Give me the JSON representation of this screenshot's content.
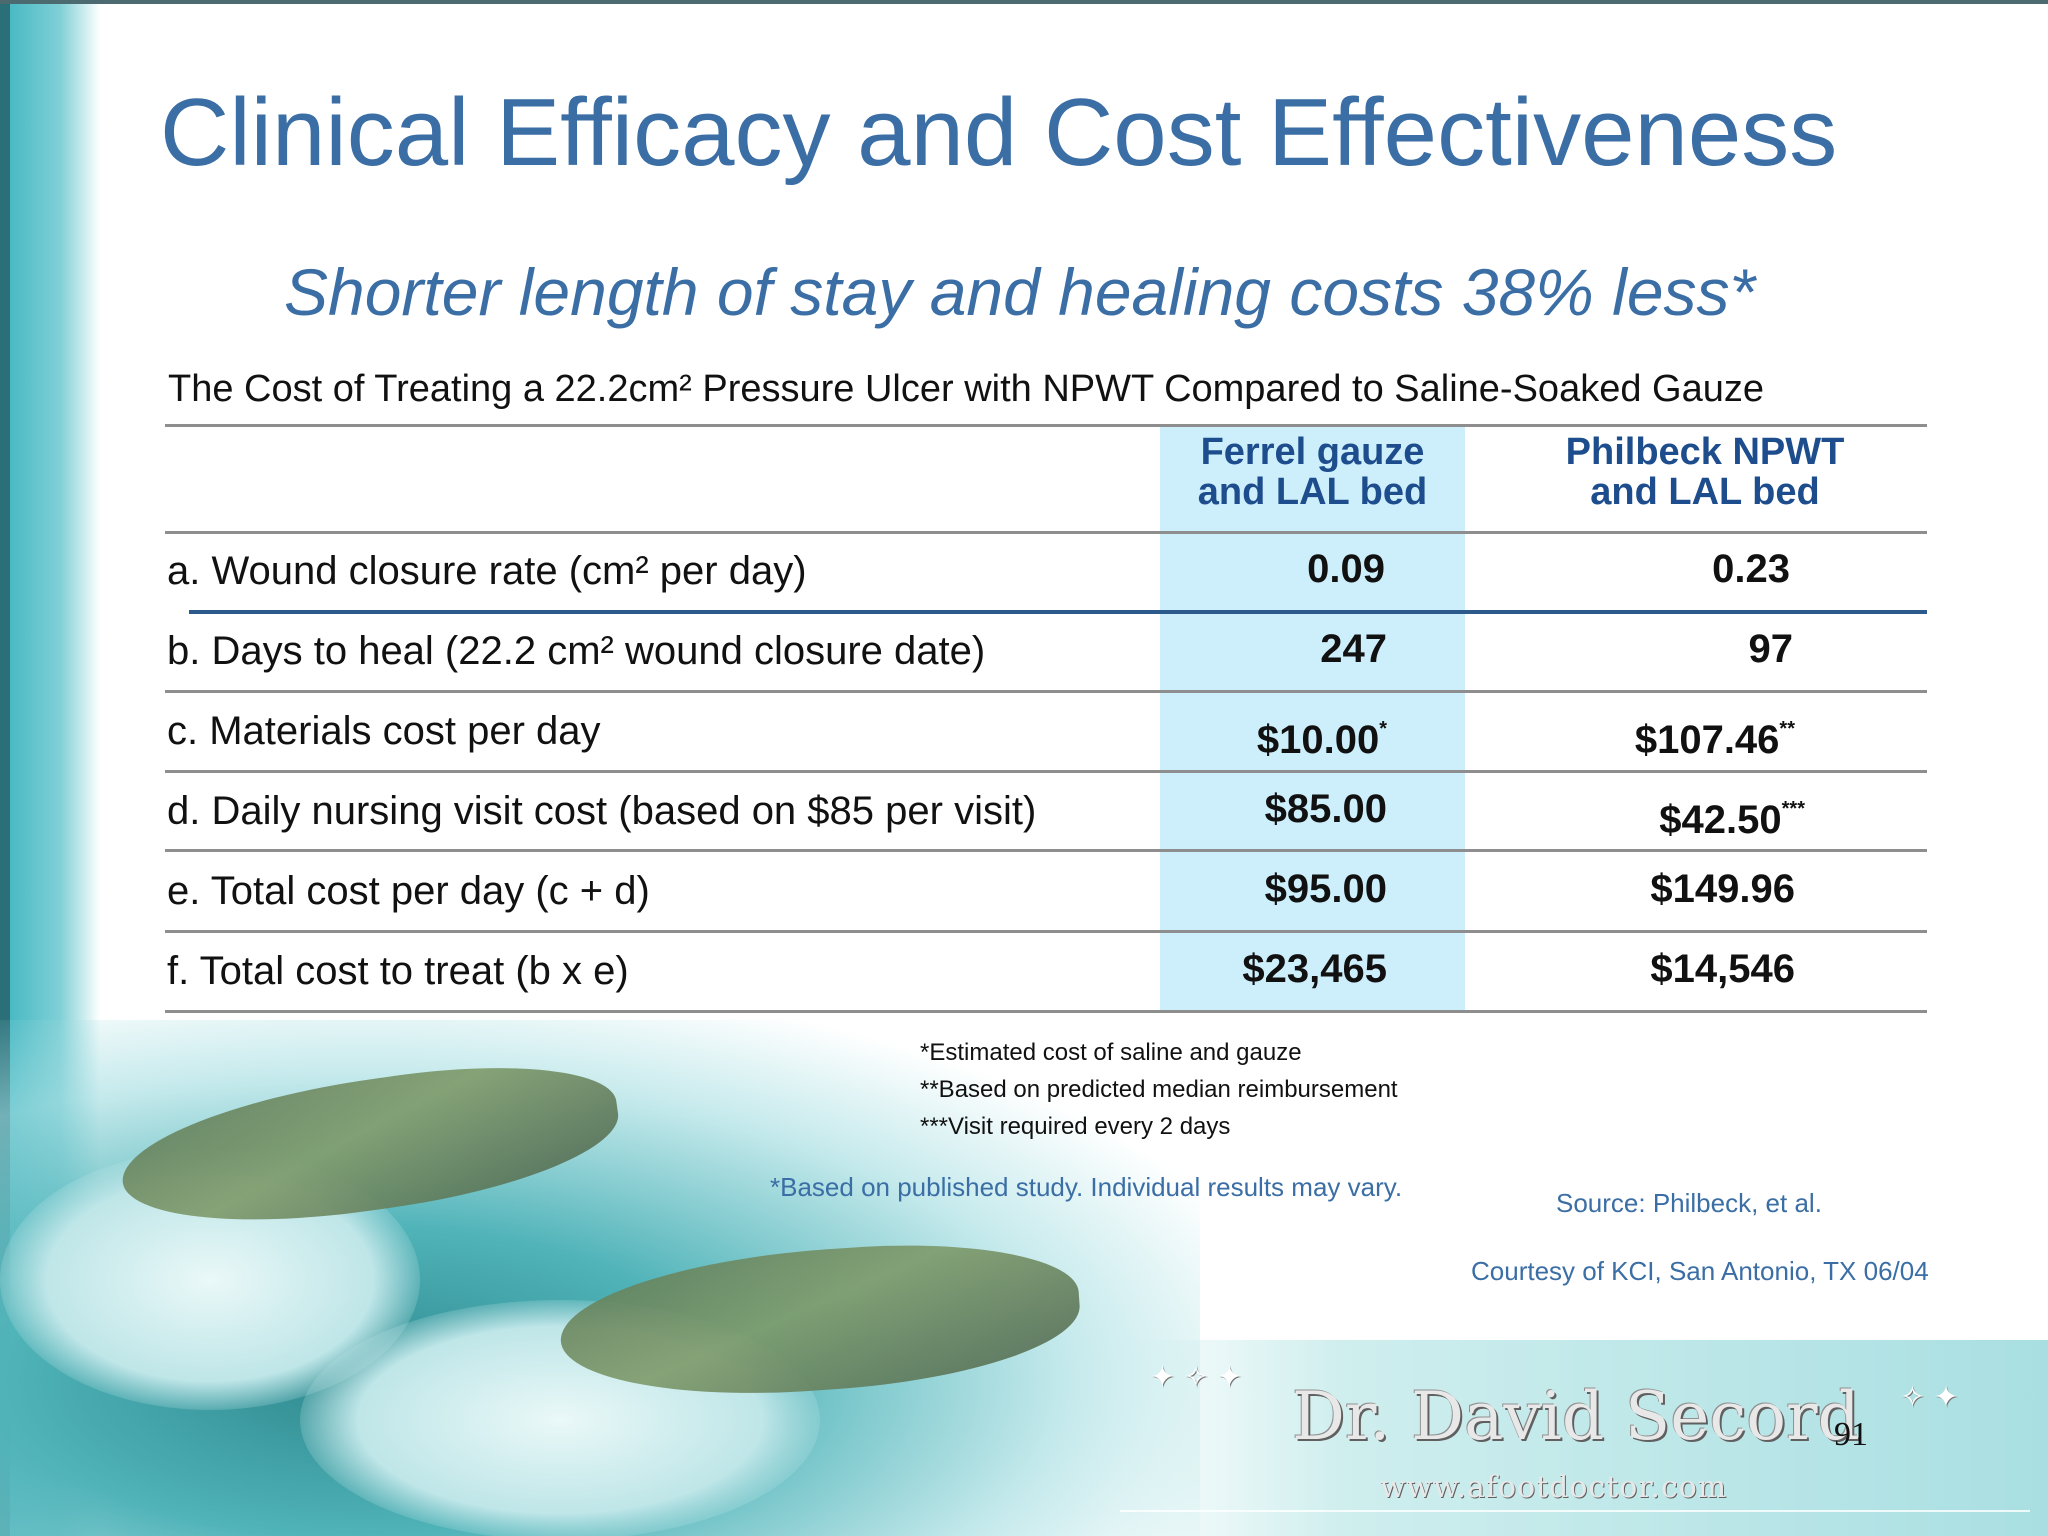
{
  "slide": {
    "title": "Clinical Efficacy and Cost Effectiveness",
    "subtitle": "Shorter length of stay and healing costs 38% less*",
    "table": {
      "caption": "The Cost of Treating a 22.2cm² Pressure Ulcer with NPWT Compared to Saline-Soaked Gauze",
      "columns": [
        {
          "line1": "Ferrel gauze",
          "line2": "and LAL bed"
        },
        {
          "line1": "Philbeck NPWT",
          "line2": "and LAL bed"
        }
      ],
      "rows": [
        {
          "label": "a. Wound closure rate (cm² per day)",
          "col1": "0.09",
          "col2": "0.23",
          "col1_mark": "",
          "col2_mark": ""
        },
        {
          "label": "b. Days to heal (22.2 cm² wound closure date)",
          "col1": "247",
          "col2": "97",
          "col1_mark": "",
          "col2_mark": ""
        },
        {
          "label": "c. Materials cost per day",
          "col1": "$10.00",
          "col2": "$107.46",
          "col1_mark": "*",
          "col2_mark": "**"
        },
        {
          "label": "d. Daily nursing visit cost (based on $85 per visit)",
          "col1": "$85.00",
          "col2": "$42.50",
          "col1_mark": "",
          "col2_mark": "***"
        },
        {
          "label": "e. Total cost per day (c + d)",
          "col1": "$95.00",
          "col2": "$149.96",
          "col1_mark": "",
          "col2_mark": ""
        },
        {
          "label": "f. Total cost to treat (b x e)",
          "col1": "$23,465",
          "col2": "$14,546",
          "col1_mark": "",
          "col2_mark": ""
        }
      ]
    },
    "footnotes": [
      "*Estimated cost of saline and gauze",
      "**Based on predicted median reimbursement",
      "***Visit required every 2 days"
    ],
    "disclaimer": "*Based on published study. Individual results may vary.",
    "source": "Source: Philbeck, et al.",
    "courtesy": "Courtesy of KCI, San Antonio, TX 06/04",
    "logo_name": "Dr. David Secord",
    "logo_url": "www.afootdoctor.com",
    "page_number": "91"
  },
  "colors": {
    "accent_blue": "#3a6ea5",
    "header_blue": "#1d4d8c",
    "highlight_column": "#cdeefb",
    "teal": "#3fb5c0"
  }
}
